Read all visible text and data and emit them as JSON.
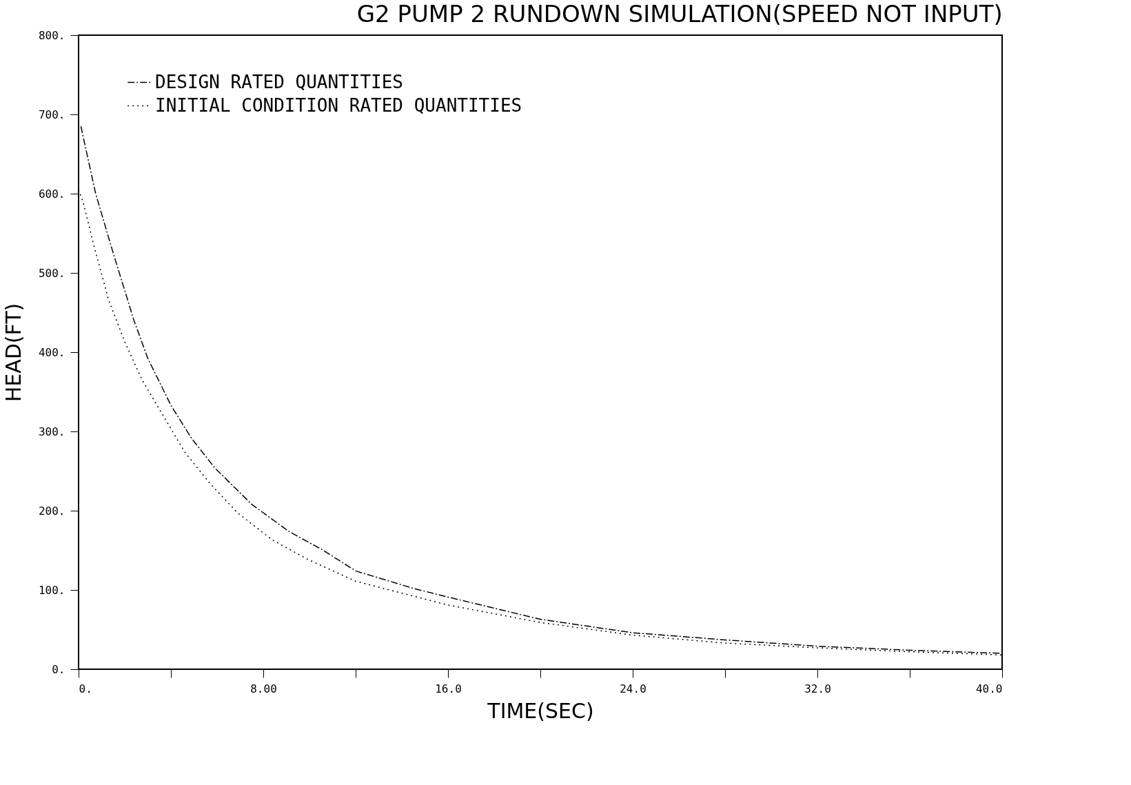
{
  "chart_data": {
    "type": "line",
    "title": "G2 PUMP 2 RUNDOWN SIMULATION(SPEED NOT INPUT)",
    "xlabel": "TIME(SEC)",
    "ylabel": "HEAD(FT)",
    "xlim": [
      0,
      40
    ],
    "ylim": [
      0,
      800
    ],
    "xticks": [
      {
        "value": 0,
        "label": "0."
      },
      {
        "value": 4,
        "label": null
      },
      {
        "value": 8,
        "label": "8.00"
      },
      {
        "value": 12,
        "label": null
      },
      {
        "value": 16,
        "label": "16.0"
      },
      {
        "value": 20,
        "label": null
      },
      {
        "value": 24,
        "label": "24.0"
      },
      {
        "value": 28,
        "label": null
      },
      {
        "value": 32,
        "label": "32.0"
      },
      {
        "value": 36,
        "label": null
      },
      {
        "value": 40,
        "label": "40.0"
      }
    ],
    "yticks": [
      {
        "value": 0,
        "label": "0."
      },
      {
        "value": 100,
        "label": "100."
      },
      {
        "value": 200,
        "label": "200."
      },
      {
        "value": 300,
        "label": "300."
      },
      {
        "value": 400,
        "label": "400."
      },
      {
        "value": 500,
        "label": "500."
      },
      {
        "value": 600,
        "label": "600."
      },
      {
        "value": 700,
        "label": "700."
      },
      {
        "value": 800,
        "label": "800."
      }
    ],
    "grid": false,
    "legend": "top left",
    "series": [
      {
        "name": "DESIGN RATED QUANTITIES",
        "color": "#000000",
        "line_style": "dashed",
        "x": [
          0.1,
          0.74,
          1.5,
          2.4,
          3.0,
          4.0,
          4.9,
          5.9,
          7.5,
          9.1,
          10.6,
          12,
          14.5,
          16,
          20,
          24,
          28,
          32,
          36,
          40
        ],
        "values": [
          685,
          600,
          525,
          440,
          392,
          333,
          291,
          254,
          208,
          174,
          150,
          124,
          102,
          91,
          63,
          46,
          37,
          29,
          24,
          20
        ]
      },
      {
        "name": "INITIAL CONDITION RATED QUANTITIES",
        "color": "#000000",
        "line_style": "dotted",
        "x": [
          0,
          0.2,
          0.65,
          1.3,
          2.0,
          2.75,
          3.6,
          4.6,
          5.7,
          6.9,
          8.4,
          9.9,
          12,
          16,
          20,
          24,
          28,
          32,
          36,
          40
        ],
        "values": [
          605,
          589,
          536,
          466,
          413,
          365,
          323,
          274,
          234,
          197,
          163,
          139,
          111,
          81,
          59,
          43,
          33,
          27,
          22,
          18
        ]
      }
    ]
  }
}
